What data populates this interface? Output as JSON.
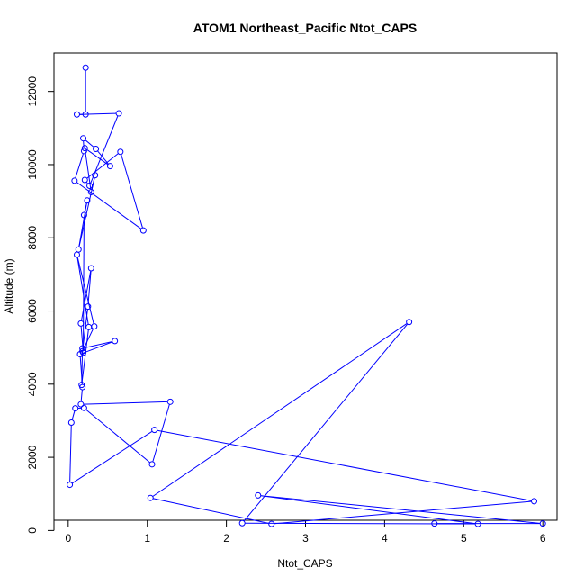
{
  "chart_data": {
    "type": "line",
    "title": "ATOM1 Northeast_Pacific Ntot_CAPS",
    "xlabel": "Ntot_CAPS",
    "ylabel": "Altitude (m)",
    "xlim": [
      -0.18,
      6.18
    ],
    "ylim": [
      280,
      13050
    ],
    "x_ticks": [
      0,
      1,
      2,
      3,
      4,
      5,
      6
    ],
    "y_ticks": [
      0,
      2000,
      4000,
      6000,
      8000,
      10000,
      12000
    ],
    "grid": false,
    "line_color": "#0000ff",
    "marker": "open-circle",
    "series": [
      {
        "x": [
          0.22,
          0.22,
          0.11,
          0.64,
          0.27,
          0.21,
          0.66,
          0.95,
          0.08,
          0.2,
          0.19,
          0.35,
          0.53,
          0.21,
          0.29,
          0.34,
          0.13,
          0.24,
          0.2,
          0.19,
          0.16,
          0.29,
          0.25,
          0.18,
          0.33,
          0.11,
          0.26,
          0.17,
          0.18,
          0.59,
          0.15,
          0.18,
          0.16,
          1.29,
          1.06,
          0.2,
          0.09,
          0.04,
          0.02,
          1.09,
          5.89,
          2.57,
          1.04,
          4.31,
          2.2,
          5.18,
          2.4,
          6.0,
          4.63
        ],
        "y": [
          12650,
          11370,
          11370,
          11400,
          9420,
          9580,
          10350,
          8200,
          9560,
          10370,
          10720,
          10430,
          9960,
          10450,
          9250,
          9710,
          7680,
          9020,
          8620,
          4860,
          5660,
          7170,
          6120,
          4900,
          5580,
          7540,
          5560,
          3980,
          4980,
          5180,
          4820,
          3920,
          3450,
          3520,
          1810,
          3350,
          3340,
          2950,
          1250,
          2750,
          800,
          180,
          890,
          5700,
          200,
          180,
          960,
          190,
          190
        ]
      }
    ]
  }
}
